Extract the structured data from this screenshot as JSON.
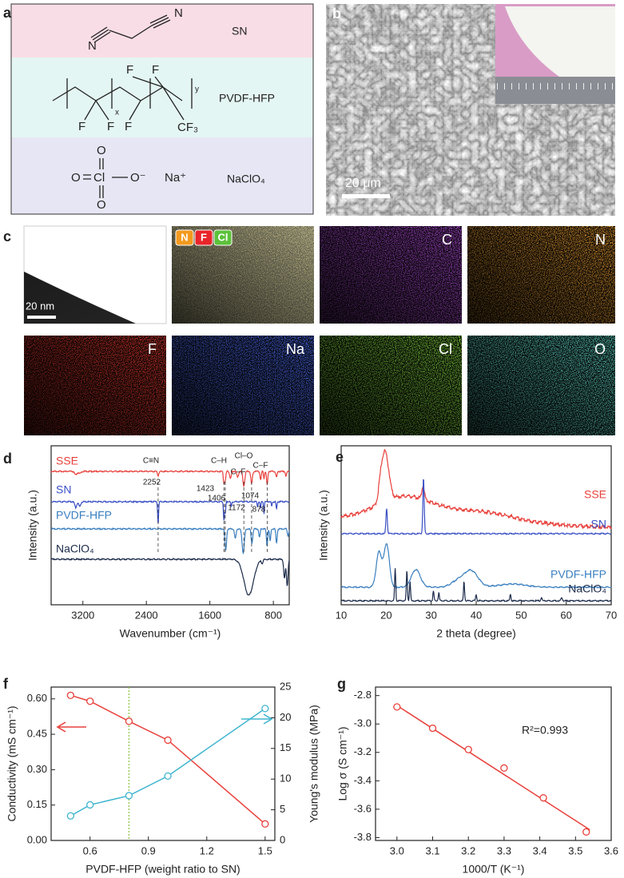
{
  "panel_labels": [
    "a",
    "b",
    "c",
    "d",
    "e",
    "f",
    "g"
  ],
  "structures": [
    {
      "name": "SN",
      "atoms": [
        "N",
        "N"
      ]
    },
    {
      "name": "PVDF-HFP",
      "atoms": [
        "F",
        "F",
        "F",
        "F",
        "F",
        "CF₃",
        "x",
        "y"
      ]
    },
    {
      "name": "NaClO₄",
      "atoms": [
        "O",
        "O",
        "Cl",
        "O⁻",
        "O",
        "Na⁺"
      ]
    }
  ],
  "micrograph": {
    "scale": "20 μm"
  },
  "eds": {
    "scale": "20 nm",
    "overlay_legend": [
      "N",
      "F",
      "Cl"
    ],
    "maps": [
      "C",
      "N",
      "F",
      "Na",
      "Cl",
      "O"
    ]
  },
  "chart_data": [
    {
      "type": "spectra",
      "xlabel": "Wavenumber (cm⁻¹)",
      "ylabel": "Intensity (a.u.)",
      "xlim": [
        3600,
        600
      ],
      "xticks": [
        3200,
        2400,
        1600,
        800
      ],
      "series": [
        {
          "name": "SSE",
          "color": "#e8413c",
          "peaks": [
            3290,
            3240,
            2252,
            1423,
            1406,
            1340,
            1250,
            1172,
            1074,
            960,
            918,
            878,
            760,
            640
          ],
          "heights": [
            0.15,
            0.1,
            0.18,
            0.45,
            0.35,
            0.3,
            0.25,
            0.6,
            0.5,
            0.35,
            0.3,
            0.55,
            0.25,
            0.2
          ],
          "widths": [
            15,
            15,
            8,
            8,
            8,
            10,
            10,
            12,
            10,
            8,
            6,
            8,
            8,
            8
          ]
        },
        {
          "name": "SN",
          "color": "#3a4fc4",
          "peaks": [
            3290,
            3240,
            2252,
            1423,
            1406,
            1330,
            1000,
            962,
            918,
            820,
            760
          ],
          "heights": [
            0.25,
            0.2,
            0.9,
            0.75,
            0.5,
            0.2,
            0.2,
            0.3,
            0.5,
            0.2,
            0.3
          ],
          "widths": [
            12,
            12,
            6,
            6,
            6,
            6,
            6,
            5,
            5,
            5,
            6
          ]
        },
        {
          "name": "PVDF-HFP",
          "color": "#3a7fbf",
          "peaks": [
            1400,
            1280,
            1180,
            1070,
            975,
            880,
            840,
            760,
            615
          ],
          "heights": [
            0.9,
            0.4,
            1.0,
            0.6,
            0.35,
            0.7,
            0.5,
            0.6,
            0.3
          ],
          "widths": [
            10,
            10,
            14,
            10,
            8,
            8,
            8,
            8,
            8
          ]
        },
        {
          "name": "NaClO₄",
          "color": "#1b2a49",
          "peaks": [
            1110,
            940,
            660,
            625
          ],
          "heights": [
            1.5,
            0.15,
            0.8,
            1.1
          ],
          "widths": [
            60,
            10,
            10,
            10
          ]
        }
      ],
      "guides": [
        2252,
        1423,
        1406,
        1172,
        1074,
        878
      ],
      "annotations": [
        "C≡N",
        "2252",
        "C–H",
        "1423",
        "1406",
        "Cl–O",
        "C–F",
        "1172",
        "1074",
        "C–F",
        "878"
      ]
    },
    {
      "type": "xrd",
      "xlabel": "2 theta (degree)",
      "ylabel": "Intensity (a.u.)",
      "xlim": [
        10,
        70
      ],
      "xticks": [
        10,
        20,
        30,
        40,
        50,
        60,
        70
      ],
      "series": [
        {
          "name": "SSE",
          "color": "#e8413c",
          "peaks": [
            19.8,
            18.8,
            28.2,
            24,
            40
          ],
          "heights": [
            1.5,
            0.4,
            0.4,
            0.7,
            0.35
          ],
          "widths": [
            0.8,
            0.5,
            0.3,
            6,
            8
          ]
        },
        {
          "name": "SN",
          "color": "#3a4fc4",
          "peaks": [
            20.1,
            28.3
          ],
          "heights": [
            0.8,
            1.75
          ],
          "widths": [
            0.15,
            0.15
          ]
        },
        {
          "name": "PVDF-HFP",
          "color": "#3a7fbf",
          "peaks": [
            18.4,
            20.1,
            26.6,
            36,
            38.9,
            48
          ],
          "heights": [
            1.1,
            1.35,
            0.55,
            0.2,
            0.5,
            0.1
          ],
          "widths": [
            0.6,
            0.6,
            1.0,
            1.5,
            1.5,
            3
          ]
        },
        {
          "name": "NaClO₄",
          "color": "#1b2a49",
          "peaks": [
            22,
            24.6,
            25.3,
            30.5,
            31.7,
            37.3,
            40,
            47.6,
            54.5,
            59
          ],
          "heights": [
            1.0,
            0.95,
            0.6,
            0.3,
            0.25,
            0.6,
            0.2,
            0.2,
            0.1,
            0.1
          ],
          "widths": [
            0.12,
            0.12,
            0.12,
            0.12,
            0.12,
            0.12,
            0.12,
            0.12,
            0.12,
            0.15
          ]
        }
      ]
    },
    {
      "type": "dual",
      "xlabel": "PVDF-HFP (weight ratio to SN)",
      "ylabel": "Conductivity (mS cm⁻¹)",
      "y2label": "Young's modulus (MPa)",
      "x": [
        0.5,
        0.6,
        0.8,
        1.0,
        1.5
      ],
      "xlim": [
        0.4,
        1.55
      ],
      "xticks": [
        0.6,
        0.9,
        1.2,
        1.5
      ],
      "ylim": [
        0,
        0.65
      ],
      "yticks": [
        {
          "value": 0,
          "label": "0.00"
        },
        0.15,
        {
          "value": 0.3,
          "label": "0.30"
        },
        0.45,
        {
          "value": 0.6,
          "label": "0.60"
        }
      ],
      "y2lim": [
        0,
        25
      ],
      "y2ticks": [
        0,
        5,
        10,
        15,
        20,
        25
      ],
      "series": [
        {
          "color": "#e8413c",
          "values": [
            0.615,
            0.59,
            0.505,
            0.425,
            0.07
          ]
        },
        {
          "color": "#3fb5cf",
          "values": [
            4,
            5.8,
            7.3,
            10.5,
            21.5
          ],
          "axis": "y2"
        }
      ],
      "vline": 0.8,
      "vline_color": "#8cc63f"
    },
    {
      "type": "fit",
      "xlabel": "1000/T (K⁻¹)",
      "ylabel": "Log σ (S cm⁻¹)",
      "x": [
        3.0,
        3.1,
        3.2,
        3.3,
        3.41,
        3.53
      ],
      "xlim": [
        2.94,
        3.6
      ],
      "xticks": [
        {
          "value": 3,
          "label": "3.0"
        },
        3.1,
        3.2,
        3.3,
        3.4,
        3.5,
        3.6
      ],
      "ylim": [
        -3.82,
        -2.74
      ],
      "yticks": [
        -2.8,
        {
          "value": -3,
          "label": "-3.0"
        },
        -3.2,
        -3.4,
        -3.6,
        -3.8
      ],
      "series": [
        {
          "color": "#e8413c",
          "values": [
            -2.88,
            -3.03,
            -3.18,
            -3.31,
            -3.52,
            -3.76
          ]
        }
      ],
      "fit": {
        "x": [
          3.0,
          3.54
        ],
        "values": [
          -2.87,
          -3.745
        ]
      },
      "annotation": "R²=0.993"
    }
  ]
}
